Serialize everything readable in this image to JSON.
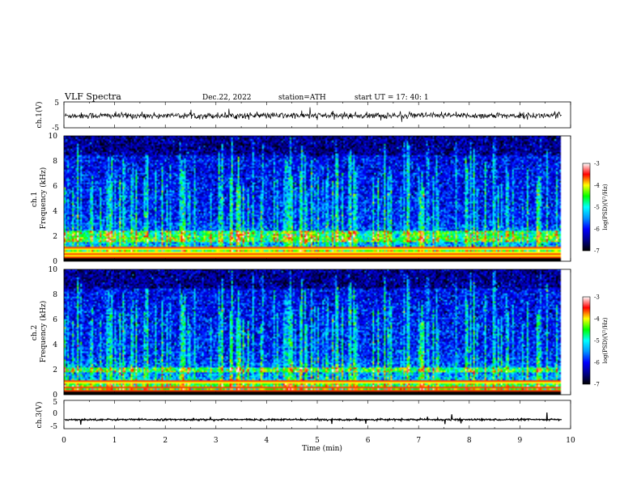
{
  "header": {
    "title": "VLF  Spectra",
    "date": "Dec.22, 2022",
    "station": "station=ATH",
    "start_ut": "start  UT  =    17: 40: 1"
  },
  "chart_data": [
    {
      "id": "ch1-waveform",
      "type": "line",
      "ylabel": "ch.1(V)",
      "ylim": [
        -5,
        5
      ],
      "yticks": [
        "5",
        "-5"
      ],
      "xlim": [
        0,
        10
      ],
      "data_end_min": 9.83,
      "approx_mean_v": -0.3,
      "approx_noise_v": 0.6
    },
    {
      "id": "ch1-spectrogram",
      "type": "heatmap",
      "ylabel": "ch.1\nFrequency  (kHz)",
      "ylim": [
        0,
        10
      ],
      "yticks": [
        "0",
        "2",
        "4",
        "6",
        "8",
        "10"
      ],
      "xlim": [
        0,
        10
      ],
      "data_end_min": 9.83,
      "colorbar": {
        "label": "log(PSD)(V²/Hz)",
        "range": [
          -7,
          -3
        ],
        "ticks": [
          "-3",
          "-4",
          "-5",
          "-6",
          "-7"
        ]
      },
      "features": {
        "strong_band_khz": [
          1.6,
          2.4
        ],
        "low_freq_lines_khz": [
          0.3,
          0.5,
          0.7,
          1.0
        ],
        "sferic_count": 140
      }
    },
    {
      "id": "ch2-spectrogram",
      "type": "heatmap",
      "ylabel": "ch.2\nFrequency  (kHz)",
      "ylim": [
        0,
        10
      ],
      "yticks": [
        "0",
        "2",
        "4",
        "6",
        "8",
        "10"
      ],
      "xlim": [
        0,
        10
      ],
      "data_end_min": 9.83,
      "colorbar": {
        "label": "log(PSD)(V²/Hz)",
        "range": [
          -7,
          -3
        ],
        "ticks": [
          "-3",
          "-4",
          "-5",
          "-6",
          "-7"
        ]
      },
      "features": {
        "strong_band_khz": [
          1.8,
          2.2
        ],
        "low_freq_lines_khz": [
          0.3,
          0.6,
          1.0
        ],
        "sferic_count": 140
      }
    },
    {
      "id": "ch3-waveform",
      "type": "line",
      "ylabel": "ch.3(V)",
      "ylim": [
        -5,
        5
      ],
      "yticks": [
        "5",
        "0",
        "-5"
      ],
      "xlim": [
        0,
        10
      ],
      "data_end_min": 9.83,
      "approx_mean_v": -1.8,
      "approx_noise_v": 0.15
    }
  ],
  "xaxis": {
    "label": "Time  (min)",
    "ticks": [
      "0",
      "1",
      "2",
      "3",
      "4",
      "5",
      "6",
      "7",
      "8",
      "9",
      "10"
    ]
  },
  "colors": {
    "colormap": [
      "#000000",
      "#00008c",
      "#0000ff",
      "#0096ff",
      "#00ffff",
      "#00ff00",
      "#ffff00",
      "#ff0000",
      "#ffffff"
    ]
  }
}
